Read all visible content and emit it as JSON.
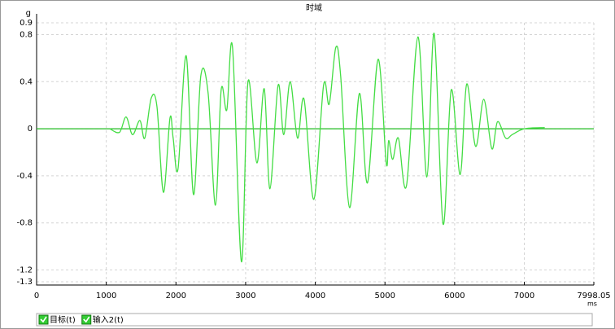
{
  "chart_data": {
    "type": "line",
    "title": "时域",
    "y_unit": "g",
    "x_unit": "ms",
    "xlim": [
      0,
      7998.05
    ],
    "ylim": [
      -1.3,
      0.9
    ],
    "xticks": [
      0,
      1000,
      2000,
      3000,
      4000,
      5000,
      6000,
      7000,
      7998.05
    ],
    "yticks": [
      0.9,
      0.8,
      0.4,
      0,
      -0.4,
      -0.8,
      -1.2,
      -1.3
    ],
    "grid": true,
    "series": [
      {
        "name": "目标(t)",
        "color": "#44dd44",
        "label_color": "#ff0000",
        "x": [
          1050,
          1190,
          1284,
          1377,
          1482,
          1552,
          1645,
          1727,
          1820,
          1914,
          1960,
          2030,
          2147,
          2252,
          2357,
          2462,
          2567,
          2649,
          2730,
          2812,
          2940,
          3034,
          3162,
          3267,
          3349,
          3466,
          3547,
          3640,
          3745,
          3839,
          3979,
          4119,
          4200,
          4294,
          4364,
          4492,
          4633,
          4749,
          4901,
          5018,
          5053,
          5111,
          5193,
          5310,
          5473,
          5601,
          5706,
          5834,
          5951,
          6079,
          6173,
          6301,
          6418,
          6534,
          6616,
          6733,
          6826,
          7001,
          7293
        ],
        "values": [
          0,
          -0.03,
          0.1,
          -0.05,
          0.07,
          -0.08,
          0.26,
          0.19,
          -0.54,
          0.09,
          -0.08,
          -0.34,
          0.62,
          -0.56,
          0.45,
          0.3,
          -0.65,
          0.33,
          0.16,
          0.69,
          -1.13,
          0.4,
          -0.29,
          0.34,
          -0.51,
          0.37,
          -0.05,
          0.4,
          -0.08,
          0.25,
          -0.6,
          0.37,
          0.21,
          0.69,
          0.45,
          -0.67,
          0.3,
          -0.46,
          0.59,
          -0.29,
          -0.1,
          -0.26,
          -0.08,
          -0.48,
          0.78,
          -0.41,
          0.81,
          -0.81,
          0.33,
          -0.39,
          0.38,
          -0.15,
          0.25,
          -0.17,
          0.06,
          -0.08,
          -0.05,
          0,
          0.01
        ]
      },
      {
        "name": "输入2(t)",
        "color": "#22bb22",
        "label_color": "#000000",
        "x": [
          0,
          7998.05
        ],
        "values": [
          0,
          0
        ]
      }
    ]
  }
}
